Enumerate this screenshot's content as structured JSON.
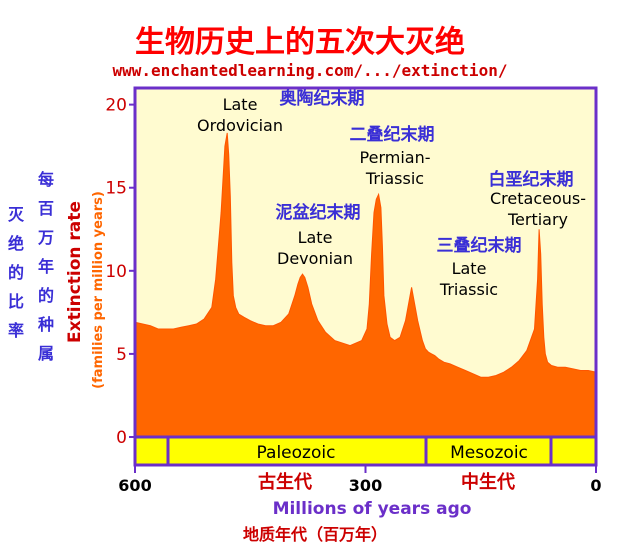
{
  "title_cn": "生物历史上的五次大灭绝",
  "source_url": "www.enchantedlearning.com/.../extinction/",
  "chart_data": {
    "type": "area",
    "title": "生物历史上的五次大灭绝",
    "xlabel": "Millions of years ago",
    "xlabel_cn": "地质年代（百万年）",
    "ylabel": "Extinction rate",
    "ylabel_sub": "(families per million years)",
    "ylabel_cn_col1": "每百万年的种属",
    "ylabel_cn_col2": "灭绝的比率",
    "xlim": [
      600,
      0
    ],
    "ylim": [
      0,
      21
    ],
    "x_ticks": [
      {
        "value": 600,
        "label": "600"
      },
      {
        "value": 300,
        "label": "300"
      },
      {
        "value": 0,
        "label": "0"
      }
    ],
    "y_ticks": [
      {
        "value": 0,
        "label": "0"
      },
      {
        "value": 5,
        "label": "5"
      },
      {
        "value": 10,
        "label": "10"
      },
      {
        "value": 15,
        "label": "15"
      },
      {
        "value": 20,
        "label": "20"
      }
    ],
    "series": [
      {
        "x": [
          600,
          590,
          580,
          570,
          560,
          550,
          540,
          530,
          520,
          510,
          500,
          495,
          488,
          483,
          480,
          478,
          476,
          474,
          472,
          469,
          465,
          458,
          450,
          440,
          430,
          420,
          410,
          400,
          392,
          388,
          385,
          382,
          379,
          375,
          370,
          362,
          352,
          340,
          320,
          305,
          298,
          295,
          292,
          289,
          286,
          283,
          280,
          278,
          276,
          272,
          268,
          262,
          255,
          248,
          240,
          232,
          226,
          222,
          218,
          214,
          210,
          205,
          198,
          190,
          180,
          170,
          160,
          150,
          140,
          130,
          120,
          110,
          100,
          90,
          80,
          76,
          74,
          72,
          70,
          68,
          66,
          63,
          58,
          50,
          40,
          30,
          20,
          10,
          0
        ],
        "values": [
          6.9,
          6.8,
          6.7,
          6.5,
          6.5,
          6.5,
          6.6,
          6.7,
          6.8,
          7.1,
          7.8,
          9.5,
          13.5,
          17.5,
          18.3,
          17.0,
          14.5,
          10.5,
          8.5,
          7.8,
          7.4,
          7.2,
          7.0,
          6.8,
          6.7,
          6.7,
          6.9,
          7.4,
          8.5,
          9.2,
          9.6,
          9.8,
          9.6,
          9.0,
          8.0,
          7.0,
          6.3,
          5.8,
          5.5,
          5.8,
          6.5,
          8.0,
          11.0,
          13.5,
          14.3,
          14.6,
          13.8,
          11.5,
          8.5,
          6.8,
          6.0,
          5.8,
          6.0,
          7.0,
          9.0,
          7.0,
          5.8,
          5.3,
          5.1,
          5.0,
          4.9,
          4.7,
          4.5,
          4.4,
          4.2,
          4.0,
          3.8,
          3.6,
          3.6,
          3.7,
          3.9,
          4.2,
          4.6,
          5.2,
          6.5,
          9.5,
          12.5,
          11.0,
          8.0,
          6.0,
          5.0,
          4.5,
          4.3,
          4.2,
          4.2,
          4.1,
          4.0,
          4.0,
          3.9
        ]
      }
    ],
    "annotations": [
      {
        "text": "Late\nOrdovician",
        "cn": "奥陶纪末期"
      },
      {
        "text": "Late\nDevonian",
        "cn": "泥盆纪末期"
      },
      {
        "text": "Permian-\nTriassic",
        "cn": "二叠纪末期"
      },
      {
        "text": "Late\nTriassic",
        "cn": "三叠纪末期"
      },
      {
        "text": "Cretaceous-\nTertiary",
        "cn": "白垩纪末期"
      }
    ],
    "eras": [
      {
        "label": "Paleozoic",
        "cn": "古生代"
      },
      {
        "label": "Mesozoic",
        "cn": "中生代"
      }
    ],
    "grid": false,
    "legend": "none",
    "colors": {
      "fill": "#ff6600",
      "background": "#fffbd0",
      "frame": "#6b2fc9",
      "axis_numbers": "#cc0000",
      "ylabel_main": "#cc0000",
      "ylabel_sub": "#ff6600",
      "era_band": "#ffff00",
      "cn_label": "#3a2fd6",
      "cn_era": "#cc0000",
      "title": "#ff0000",
      "url": "#cc0000",
      "xlabel": "#6b2fc9",
      "xlabel_cn": "#cc0000",
      "event_text": "#000000"
    }
  }
}
